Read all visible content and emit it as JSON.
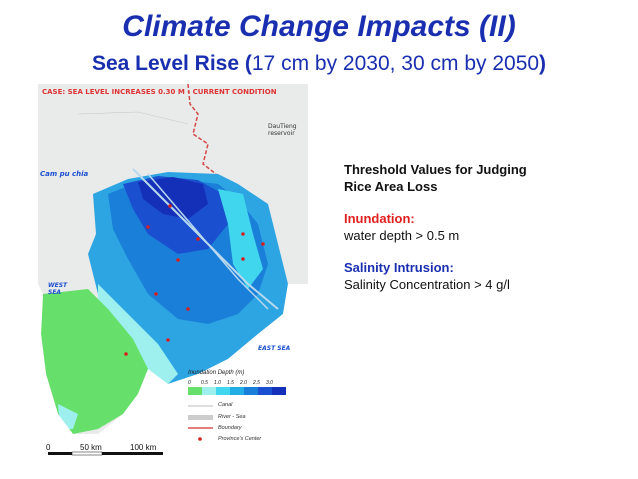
{
  "title": "Climate Change Impacts (II)",
  "subtitle": {
    "bold": "Sea Level Rise (",
    "normal": "17 cm by 2030, 30 cm by 2050",
    "close": ")"
  },
  "map": {
    "case_label": "CASE: SEA LEVEL INCREASES 0.30 M - CURRENT CONDITION",
    "labels": {
      "cambodia": "Cam pu chia",
      "west_sea": "WEST SEA",
      "east_sea": "EAST SEA",
      "reservoir": "DauTieng reservoir"
    },
    "legend": {
      "title": "Inundation  Depth (m)",
      "ticks": [
        "0",
        "0.5",
        "1.0",
        "1.5",
        "2.0",
        "2.5",
        "3.0"
      ],
      "colors": [
        "#66e06a",
        "#9ef0ee",
        "#3fd6ee",
        "#22aee4",
        "#1a7fd8",
        "#1a4fd0",
        "#1530b8"
      ],
      "keys": [
        "Canal",
        "River - Sea",
        "Boundary",
        "Province's Center"
      ]
    },
    "scale": {
      "zero": "0",
      "mid": "50 km",
      "end": "100 km"
    }
  },
  "threshold": {
    "heading_line1": "Threshold Values for Judging",
    "heading_line2": "Rice Area Loss",
    "inundation_label": "Inundation:",
    "inundation_value": "water depth > 0.5 m",
    "salinity_label": "Salinity Intrusion:",
    "salinity_value": "Salinity Concentration > 4 g/l"
  }
}
